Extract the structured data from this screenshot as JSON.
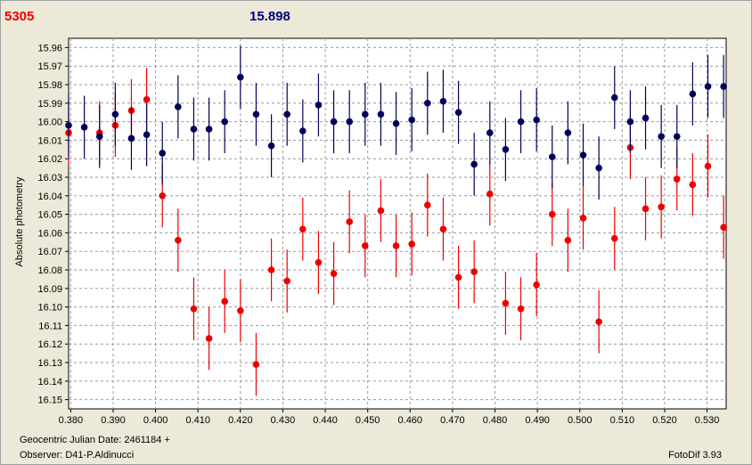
{
  "header": {
    "left_value": "5305",
    "right_value": "15.898"
  },
  "footer": {
    "date_label": "Geocentric Julian Date: 2461184 +",
    "observer": "Observer: D41-P.Aldinucci",
    "software": "FotoDif 3.93"
  },
  "colors": {
    "series_red": "#ee0000",
    "series_blue": "#00005a",
    "grid": "#9a9a9a",
    "plot_bg": "#ffffff"
  },
  "chart_data": {
    "type": "scatter",
    "ylabel": "Absolute photometry",
    "xlabel": "",
    "xlim": [
      0.3795,
      0.5345
    ],
    "ylim": [
      16.155,
      15.955
    ],
    "y_inverted": true,
    "grid": true,
    "error_bar": 0.017,
    "xticks": [
      0.38,
      0.39,
      0.4,
      0.41,
      0.42,
      0.43,
      0.44,
      0.45,
      0.46,
      0.47,
      0.48,
      0.49,
      0.5,
      0.51,
      0.52,
      0.53
    ],
    "xtick_labels": [
      "0.380",
      "0.390",
      "0.400",
      "0.410",
      "0.420",
      "0.430",
      "0.440",
      "0.450",
      "0.460",
      "0.470",
      "0.480",
      "0.490",
      "0.500",
      "0.510",
      "0.520",
      "0.530"
    ],
    "yticks": [
      15.96,
      15.97,
      15.98,
      15.99,
      16.0,
      16.01,
      16.02,
      16.03,
      16.04,
      16.05,
      16.06,
      16.07,
      16.08,
      16.09,
      16.1,
      16.11,
      16.12,
      16.13,
      16.14,
      16.15
    ],
    "ytick_labels": [
      "15.96",
      "15.97",
      "15.98",
      "15.99",
      "16.00",
      "16.01",
      "16.02",
      "16.03",
      "16.04",
      "16.05",
      "16.06",
      "16.07",
      "16.08",
      "16.09",
      "16.10",
      "16.11",
      "16.12",
      "16.13",
      "16.14",
      "16.15"
    ],
    "series": [
      {
        "color": "#ee0000",
        "x": [
          0.3795,
          0.3868,
          0.3905,
          0.3943,
          0.3979,
          0.4016,
          0.4053,
          0.409,
          0.4126,
          0.4163,
          0.42,
          0.4237,
          0.4273,
          0.431,
          0.4347,
          0.4384,
          0.442,
          0.4457,
          0.4494,
          0.4531,
          0.4567,
          0.4604,
          0.4641,
          0.4678,
          0.4714,
          0.4751,
          0.4788,
          0.4825,
          0.4861,
          0.4898,
          0.4935,
          0.4972,
          0.5008,
          0.5045,
          0.5082,
          0.5119,
          0.5155,
          0.5192,
          0.5229,
          0.5266,
          0.5302,
          0.5339
        ],
        "y": [
          16.006,
          16.006,
          16.002,
          15.994,
          15.988,
          16.04,
          16.064,
          16.101,
          16.117,
          16.097,
          16.102,
          16.131,
          16.08,
          16.086,
          16.058,
          16.076,
          16.082,
          16.054,
          16.067,
          16.048,
          16.067,
          16.066,
          16.045,
          16.058,
          16.084,
          16.081,
          16.039,
          16.098,
          16.101,
          16.088,
          16.05,
          16.064,
          16.052,
          16.108,
          16.063,
          16.014,
          16.047,
          16.046,
          16.031,
          16.034,
          16.024,
          16.057
        ]
      },
      {
        "color": "#00005a",
        "x": [
          0.3795,
          0.3832,
          0.3868,
          0.3905,
          0.3943,
          0.3979,
          0.4016,
          0.4053,
          0.409,
          0.4126,
          0.4163,
          0.42,
          0.4237,
          0.4273,
          0.431,
          0.4347,
          0.4384,
          0.442,
          0.4457,
          0.4494,
          0.4531,
          0.4567,
          0.4604,
          0.4641,
          0.4678,
          0.4714,
          0.4751,
          0.4788,
          0.4825,
          0.4861,
          0.4898,
          0.4935,
          0.4972,
          0.5008,
          0.5045,
          0.5082,
          0.5119,
          0.5155,
          0.5192,
          0.5229,
          0.5266,
          0.5302,
          0.5339
        ],
        "y": [
          16.002,
          16.003,
          16.008,
          15.996,
          16.009,
          16.007,
          16.017,
          15.992,
          16.004,
          16.004,
          16.0,
          15.976,
          15.996,
          16.013,
          15.996,
          16.005,
          15.991,
          16.0,
          16.0,
          15.996,
          15.996,
          16.001,
          15.999,
          15.99,
          15.989,
          15.995,
          16.023,
          16.006,
          16.015,
          16.0,
          15.999,
          16.019,
          16.006,
          16.018,
          16.025,
          15.987,
          16.0,
          15.998,
          16.008,
          16.008,
          15.985,
          15.981,
          15.981
        ]
      }
    ]
  }
}
